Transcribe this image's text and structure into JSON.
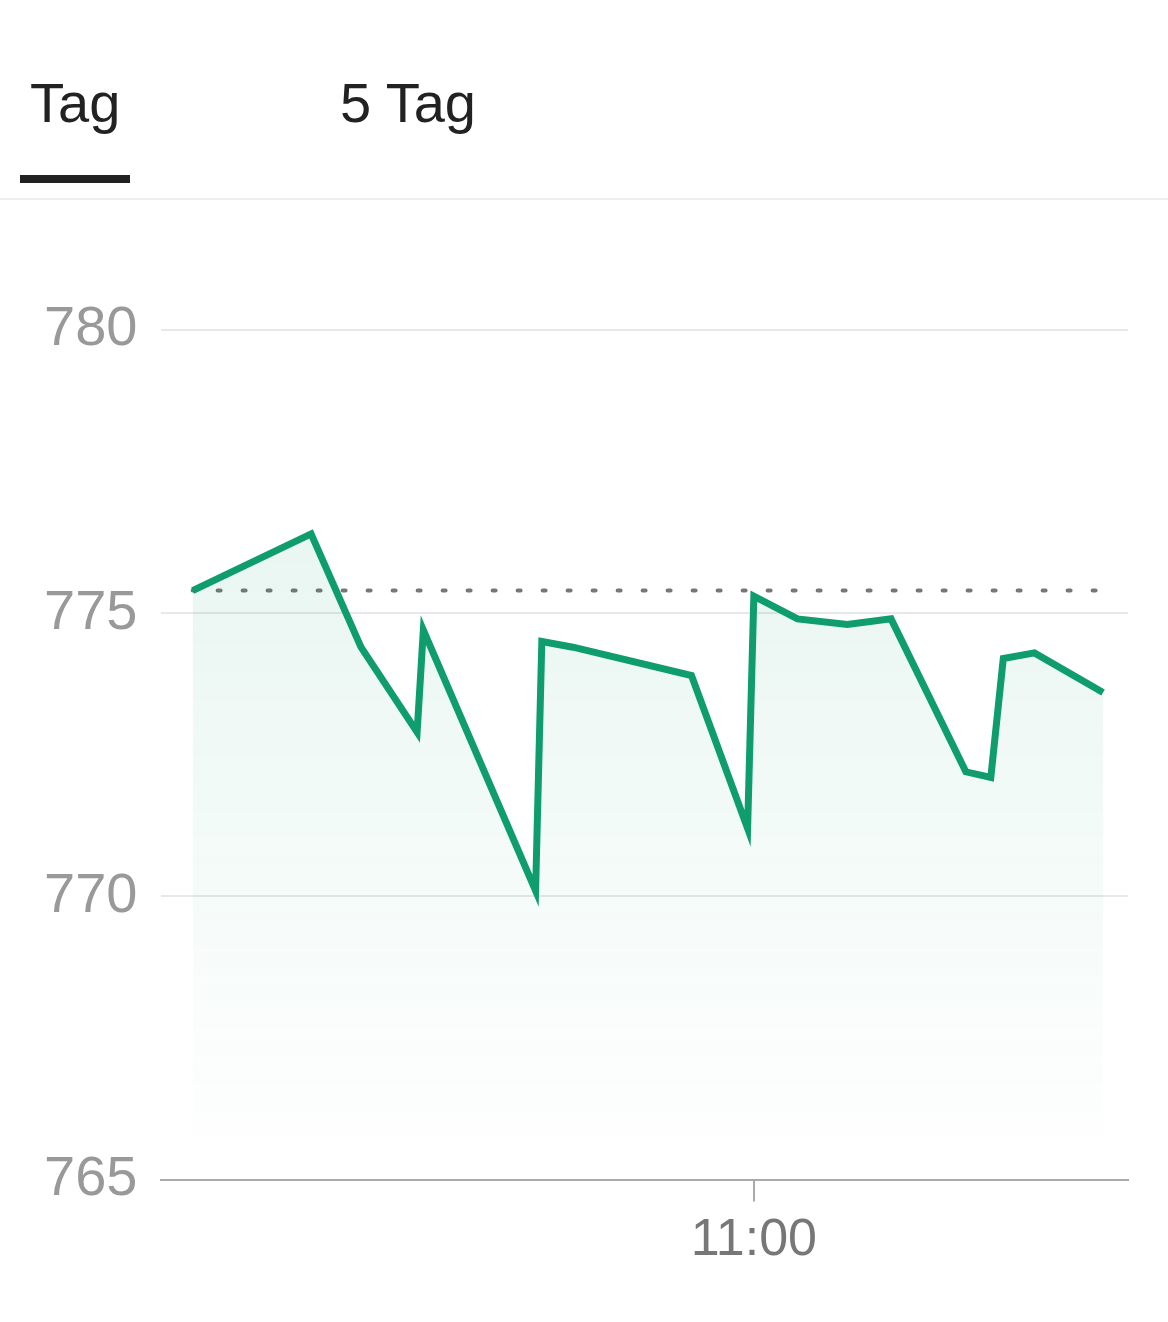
{
  "tabs": [
    "Tag",
    "5 Tag"
  ],
  "chart_data": {
    "type": "line",
    "x": [
      570,
      589,
      597,
      606,
      607,
      625,
      626,
      631,
      650,
      659,
      660,
      667,
      675,
      682,
      694,
      698,
      700,
      705,
      716
    ],
    "series": [
      {
        "color": "#0f9d6e",
        "line_style": "solid",
        "values": [
          775.4,
          776.4,
          774.4,
          772.9,
          774.7,
          770.1,
          774.5,
          774.4,
          773.9,
          771.2,
          775.3,
          774.9,
          774.8,
          774.9,
          772.2,
          772.1,
          774.2,
          774.3,
          773.6
        ]
      },
      {
        "color": "#777777",
        "line_style": "dotted",
        "values": [
          775.4,
          775.4,
          775.4,
          775.4,
          775.4,
          775.4,
          775.4,
          775.4,
          775.4,
          775.4,
          775.4,
          775.4,
          775.4,
          775.4,
          775.4,
          775.4,
          775.4,
          775.4,
          775.4
        ]
      }
    ],
    "xlim": [
      565,
      720
    ],
    "xticks": [
      {
        "value": 660,
        "label": "11:00"
      }
    ],
    "ylim": [
      765,
      780
    ],
    "yticks": [
      765,
      770,
      775,
      780
    ],
    "grid": true
  }
}
